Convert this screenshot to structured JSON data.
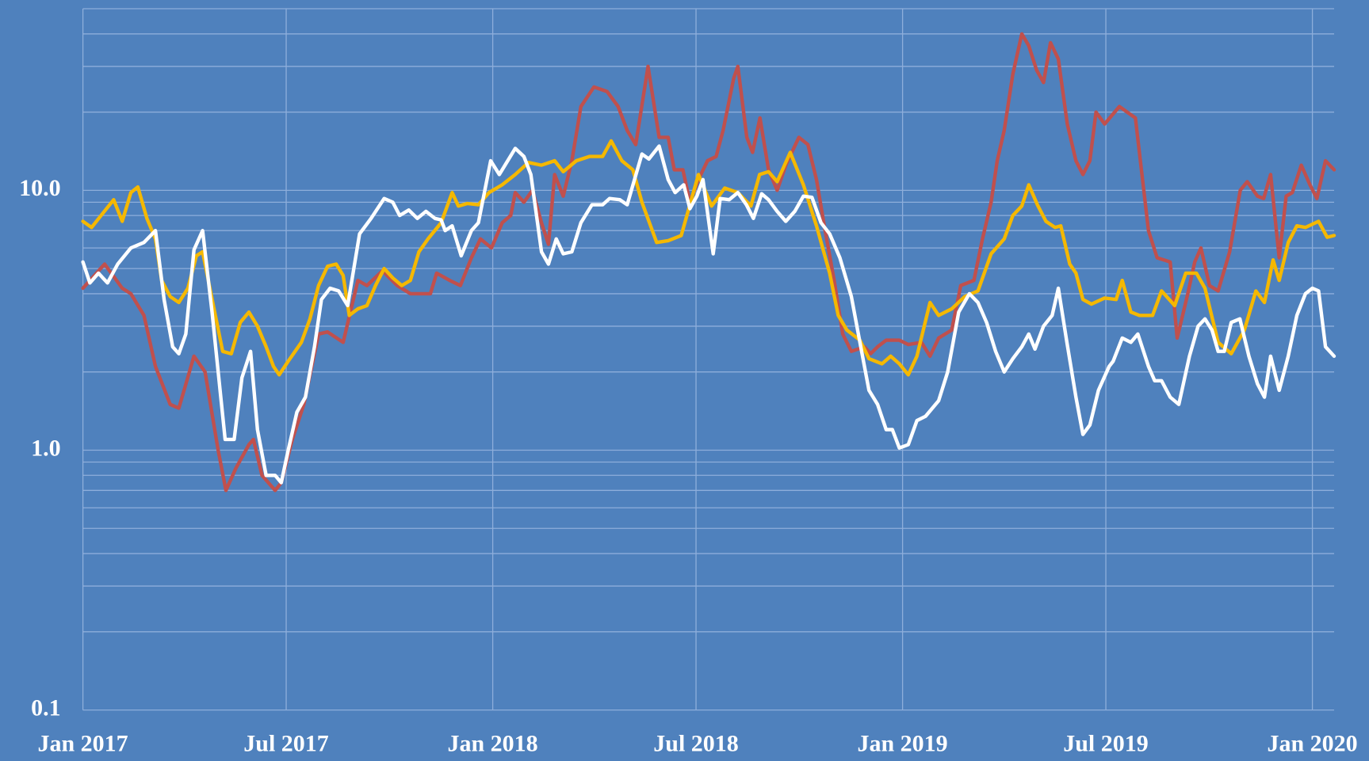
{
  "chart_data": {
    "type": "line",
    "log_y": true,
    "grid": true,
    "background": "#4f81bd",
    "grid_color": "#8eaedb",
    "xlim": [
      2017,
      2020.053
    ],
    "ylim": [
      0.1,
      50
    ],
    "yticks": [
      0.1,
      {
        "value": 1,
        "label": "1.0"
      },
      {
        "value": 10,
        "label": "10.0"
      }
    ],
    "y_minor_grid": [
      0.2,
      0.3,
      0.4,
      0.5,
      0.6,
      0.7,
      0.8,
      0.9,
      2,
      3,
      4,
      5,
      6,
      7,
      8,
      9,
      20,
      30,
      40,
      50
    ],
    "xticks": [
      {
        "value": 2017,
        "label": "Jan 2017"
      },
      {
        "value": 2017.496,
        "label": "Jul 2017"
      },
      {
        "value": 2018,
        "label": "Jan 2018"
      },
      {
        "value": 2018.496,
        "label": "Jul 2018"
      },
      {
        "value": 2019,
        "label": "Jan 2019"
      },
      {
        "value": 2019.496,
        "label": "Jul 2019"
      },
      {
        "value": 2020,
        "label": "Jan 2020"
      }
    ],
    "series": [
      {
        "color": "#c0504d",
        "x": [
          2017.0,
          2017.053,
          2017.096,
          2017.117,
          2017.149,
          2017.177,
          2017.213,
          2017.234,
          2017.271,
          2017.298,
          2017.33,
          2017.349,
          2017.373,
          2017.405,
          2017.416,
          2017.437,
          2017.469,
          2017.484,
          2017.511,
          2017.539,
          2017.575,
          2017.597,
          2017.635,
          2017.671,
          2017.693,
          2017.731,
          2017.767,
          2017.799,
          2017.848,
          2017.863,
          2017.895,
          2017.921,
          2017.948,
          2017.97,
          2017.997,
          2018.023,
          2018.044,
          2018.055,
          2018.076,
          2018.097,
          2018.119,
          2018.136,
          2018.151,
          2018.172,
          2018.193,
          2018.215,
          2018.247,
          2018.279,
          2018.306,
          2018.328,
          2018.349,
          2018.379,
          2018.406,
          2018.428,
          2018.443,
          2018.464,
          2018.481,
          2018.502,
          2018.524,
          2018.545,
          2018.562,
          2018.588,
          2018.598,
          2018.62,
          2018.634,
          2018.652,
          2018.673,
          2018.694,
          2018.715,
          2018.747,
          2018.769,
          2018.79,
          2018.811,
          2018.833,
          2018.854,
          2018.875,
          2018.907,
          2018.922,
          2018.939,
          2018.96,
          2018.992,
          2019.014,
          2019.046,
          2019.067,
          2019.088,
          2019.12,
          2019.142,
          2019.174,
          2019.195,
          2019.216,
          2019.231,
          2019.248,
          2019.269,
          2019.291,
          2019.308,
          2019.327,
          2019.344,
          2019.361,
          2019.38,
          2019.402,
          2019.423,
          2019.44,
          2019.457,
          2019.472,
          2019.493,
          2019.529,
          2019.568,
          2019.6,
          2019.621,
          2019.653,
          2019.67,
          2019.696,
          2019.713,
          2019.728,
          2019.749,
          2019.77,
          2019.798,
          2019.824,
          2019.841,
          2019.866,
          2019.881,
          2019.898,
          2019.919,
          2019.936,
          2019.951,
          2019.973,
          2019.994,
          2020.011,
          2020.032,
          2020.053
        ],
        "values": [
          4.2,
          5.2,
          4.2,
          4.0,
          3.3,
          2.1,
          1.5,
          1.45,
          2.3,
          2.0,
          1.0,
          0.7,
          0.85,
          1.05,
          1.1,
          0.8,
          0.7,
          0.75,
          1.1,
          1.5,
          2.8,
          2.85,
          2.6,
          4.5,
          4.3,
          4.9,
          4.3,
          4.0,
          4.0,
          4.8,
          4.5,
          4.3,
          5.5,
          6.5,
          6.0,
          7.5,
          8.0,
          9.8,
          9.0,
          10,
          7.5,
          6.2,
          11.5,
          9.5,
          13,
          21,
          25,
          24,
          21,
          17,
          15,
          30,
          16,
          16,
          12,
          12,
          9,
          11,
          13,
          13.5,
          17,
          27,
          30,
          16,
          14,
          19,
          12,
          10,
          12.5,
          16,
          15,
          11,
          7,
          4.5,
          2.8,
          2.4,
          2.5,
          2.35,
          2.5,
          2.65,
          2.65,
          2.55,
          2.6,
          2.3,
          2.7,
          2.9,
          4.3,
          4.5,
          6.5,
          9,
          13,
          17,
          28,
          40,
          36,
          29,
          26,
          37,
          32,
          18,
          13,
          11.5,
          13,
          20,
          18,
          21,
          19,
          7,
          5.5,
          5.3,
          2.7,
          4,
          5.3,
          6,
          4.3,
          4.1,
          5.8,
          10,
          10.8,
          9.5,
          9.3,
          11.5,
          5.5,
          9.5,
          9.8,
          12.5,
          10.5,
          9.3,
          13,
          12
        ]
      },
      {
        "color": "#f5b800",
        "x": [
          2017.0,
          2017.021,
          2017.075,
          2017.096,
          2017.117,
          2017.134,
          2017.156,
          2017.177,
          2017.192,
          2017.213,
          2017.234,
          2017.256,
          2017.277,
          2017.292,
          2017.32,
          2017.341,
          2017.362,
          2017.384,
          2017.405,
          2017.426,
          2017.447,
          2017.465,
          2017.479,
          2017.501,
          2017.533,
          2017.554,
          2017.575,
          2017.597,
          2017.618,
          2017.635,
          2017.65,
          2017.671,
          2017.693,
          2017.714,
          2017.735,
          2017.756,
          2017.778,
          2017.799,
          2017.82,
          2017.842,
          2017.874,
          2017.901,
          2017.916,
          2017.938,
          2017.965,
          2017.991,
          2018.023,
          2018.055,
          2018.087,
          2018.119,
          2018.151,
          2018.172,
          2018.204,
          2018.236,
          2018.268,
          2018.289,
          2018.315,
          2018.342,
          2018.364,
          2018.4,
          2018.428,
          2018.46,
          2018.481,
          2018.502,
          2018.534,
          2018.566,
          2018.598,
          2018.63,
          2018.651,
          2018.673,
          2018.694,
          2018.726,
          2018.758,
          2018.79,
          2018.822,
          2018.843,
          2018.864,
          2018.896,
          2018.918,
          2018.95,
          2018.971,
          2018.992,
          2019.014,
          2019.035,
          2019.067,
          2019.088,
          2019.12,
          2019.152,
          2019.184,
          2019.216,
          2019.248,
          2019.269,
          2019.291,
          2019.308,
          2019.329,
          2019.35,
          2019.372,
          2019.386,
          2019.408,
          2019.423,
          2019.44,
          2019.461,
          2019.493,
          2019.521,
          2019.536,
          2019.557,
          2019.578,
          2019.61,
          2019.632,
          2019.664,
          2019.691,
          2019.717,
          2019.738,
          2019.77,
          2019.802,
          2019.834,
          2019.862,
          2019.883,
          2019.904,
          2019.919,
          2019.941,
          2019.962,
          2019.983,
          2020.015,
          2020.036,
          2020.053
        ],
        "values": [
          7.6,
          7.2,
          9.2,
          7.6,
          9.8,
          10.3,
          7.8,
          6.5,
          4.5,
          3.9,
          3.7,
          4.2,
          5.6,
          5.8,
          3.5,
          2.4,
          2.35,
          3.1,
          3.4,
          3.0,
          2.5,
          2.1,
          1.95,
          2.2,
          2.6,
          3.2,
          4.3,
          5.1,
          5.2,
          4.7,
          3.3,
          3.5,
          3.6,
          4.3,
          5.0,
          4.6,
          4.3,
          4.5,
          5.8,
          6.5,
          7.5,
          9.8,
          8.7,
          8.9,
          8.8,
          9.8,
          10.5,
          11.5,
          12.8,
          12.5,
          13.0,
          11.8,
          13.0,
          13.5,
          13.5,
          15.5,
          13.0,
          12.0,
          9.0,
          6.3,
          6.4,
          6.7,
          8.8,
          11.5,
          8.7,
          10.2,
          9.8,
          8.7,
          11.5,
          11.8,
          10.8,
          14.0,
          10.5,
          7.3,
          4.8,
          3.3,
          2.9,
          2.65,
          2.25,
          2.15,
          2.3,
          2.15,
          1.95,
          2.3,
          3.7,
          3.3,
          3.5,
          3.9,
          4.1,
          5.7,
          6.5,
          8.0,
          8.7,
          10.5,
          8.8,
          7.6,
          7.2,
          7.3,
          5.2,
          4.8,
          3.8,
          3.65,
          3.85,
          3.8,
          4.5,
          3.4,
          3.3,
          3.3,
          4.1,
          3.6,
          4.8,
          4.8,
          4.2,
          2.6,
          2.35,
          2.9,
          4.1,
          3.7,
          5.4,
          4.5,
          6.3,
          7.3,
          7.2,
          7.6,
          6.6,
          6.7
        ]
      },
      {
        "color": "#ffffff",
        "x": [
          2017.0,
          2017.017,
          2017.038,
          2017.06,
          2017.085,
          2017.117,
          2017.149,
          2017.177,
          2017.198,
          2017.219,
          2017.234,
          2017.251,
          2017.271,
          2017.292,
          2017.315,
          2017.347,
          2017.369,
          2017.388,
          2017.409,
          2017.426,
          2017.447,
          2017.469,
          2017.484,
          2017.501,
          2017.522,
          2017.543,
          2017.565,
          2017.582,
          2017.603,
          2017.624,
          2017.646,
          2017.675,
          2017.703,
          2017.735,
          2017.756,
          2017.773,
          2017.795,
          2017.816,
          2017.837,
          2017.859,
          2017.874,
          2017.884,
          2017.901,
          2017.923,
          2017.948,
          2017.965,
          2017.995,
          2018.016,
          2018.055,
          2018.076,
          2018.093,
          2018.119,
          2018.136,
          2018.155,
          2018.172,
          2018.193,
          2018.215,
          2018.242,
          2018.268,
          2018.285,
          2018.31,
          2018.328,
          2018.364,
          2018.381,
          2018.406,
          2018.428,
          2018.445,
          2018.466,
          2018.481,
          2018.498,
          2018.513,
          2018.538,
          2018.555,
          2018.577,
          2018.598,
          2018.619,
          2018.636,
          2018.656,
          2018.673,
          2018.694,
          2018.715,
          2018.737,
          2018.758,
          2018.779,
          2018.801,
          2018.822,
          2018.847,
          2018.875,
          2018.896,
          2018.918,
          2018.939,
          2018.96,
          2018.975,
          2018.992,
          2019.014,
          2019.035,
          2019.056,
          2019.088,
          2019.11,
          2019.137,
          2019.163,
          2019.184,
          2019.205,
          2019.227,
          2019.248,
          2019.269,
          2019.291,
          2019.308,
          2019.323,
          2019.344,
          2019.365,
          2019.38,
          2019.401,
          2019.423,
          2019.44,
          2019.457,
          2019.478,
          2019.504,
          2019.514,
          2019.536,
          2019.557,
          2019.574,
          2019.6,
          2019.615,
          2019.632,
          2019.653,
          2019.674,
          2019.7,
          2019.721,
          2019.738,
          2019.755,
          2019.77,
          2019.785,
          2019.802,
          2019.823,
          2019.845,
          2019.866,
          2019.883,
          2019.898,
          2019.919,
          2019.941,
          2019.962,
          2019.983,
          2020.0,
          2020.015,
          2020.032,
          2020.053
        ],
        "values": [
          5.3,
          4.4,
          4.8,
          4.4,
          5.2,
          6.0,
          6.3,
          7.0,
          3.8,
          2.5,
          2.35,
          2.8,
          5.9,
          7.0,
          3.4,
          1.1,
          1.1,
          1.9,
          2.4,
          1.2,
          0.8,
          0.8,
          0.75,
          1.0,
          1.4,
          1.6,
          2.5,
          3.8,
          4.2,
          4.1,
          3.6,
          6.8,
          7.8,
          9.3,
          9.0,
          8.0,
          8.4,
          7.8,
          8.3,
          7.8,
          7.7,
          7.0,
          7.3,
          5.6,
          7.0,
          7.5,
          13.0,
          11.5,
          14.5,
          13.5,
          11.5,
          5.8,
          5.2,
          6.5,
          5.7,
          5.8,
          7.5,
          8.8,
          8.8,
          9.3,
          9.2,
          8.8,
          13.8,
          13.2,
          14.8,
          11.0,
          9.8,
          10.5,
          8.5,
          9.5,
          11.0,
          5.7,
          9.3,
          9.2,
          9.8,
          8.8,
          7.8,
          9.7,
          9.2,
          8.3,
          7.6,
          8.3,
          9.5,
          9.4,
          7.5,
          6.8,
          5.5,
          3.9,
          2.6,
          1.7,
          1.5,
          1.2,
          1.2,
          1.02,
          1.05,
          1.3,
          1.35,
          1.55,
          2.0,
          3.4,
          4.0,
          3.7,
          3.1,
          2.4,
          2.0,
          2.25,
          2.5,
          2.8,
          2.45,
          3.0,
          3.3,
          4.2,
          2.6,
          1.6,
          1.15,
          1.25,
          1.7,
          2.1,
          2.2,
          2.7,
          2.6,
          2.8,
          2.1,
          1.85,
          1.85,
          1.6,
          1.5,
          2.3,
          3.0,
          3.2,
          2.9,
          2.4,
          2.4,
          3.1,
          3.2,
          2.3,
          1.8,
          1.6,
          2.3,
          1.7,
          2.3,
          3.3,
          4.0,
          4.2,
          4.1,
          2.5,
          2.3
        ]
      }
    ]
  }
}
